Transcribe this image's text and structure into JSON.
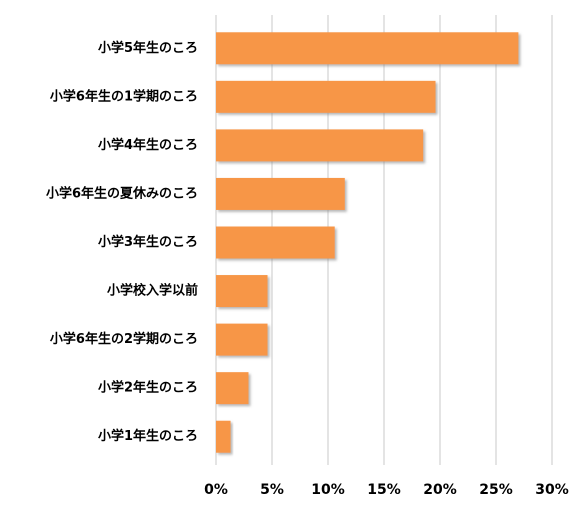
{
  "chart_data": {
    "type": "bar",
    "orientation": "horizontal",
    "categories": [
      "小学5年生のころ",
      "小学6年生の1学期のころ",
      "小学4年生のころ",
      "小学6年生の夏休みのころ",
      "小学3年生のころ",
      "小学校入学以前",
      "小学6年生の2学期のころ",
      "小学2年生のころ",
      "小学1年生のころ"
    ],
    "values": [
      27.0,
      19.6,
      18.5,
      11.5,
      10.6,
      4.6,
      4.6,
      2.9,
      1.3
    ],
    "color": "#f79646",
    "xlim": [
      0,
      30
    ],
    "xticks": [
      {
        "value": 0,
        "label": "0%"
      },
      {
        "value": 5,
        "label": "5%"
      },
      {
        "value": 10,
        "label": "10%"
      },
      {
        "value": 15,
        "label": "15%"
      },
      {
        "value": 20,
        "label": "20%"
      },
      {
        "value": 25,
        "label": "25%"
      },
      {
        "value": 30,
        "label": "30%"
      }
    ],
    "grid": true
  }
}
